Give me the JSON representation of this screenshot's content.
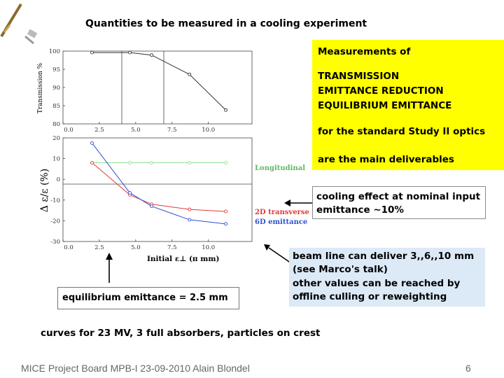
{
  "slide": {
    "title": "Quantities to be measured in a cooling experiment",
    "measurements": {
      "line1": "Measurements of",
      "line2": "TRANSMISSION",
      "line3": "EMITTANCE REDUCTION",
      "line4": "EQUILIBRIUM EMITTANCE",
      "line5": "for the standard Study II optics",
      "line6": "are the main deliverables"
    },
    "cooling_box": {
      "line1": "cooling effect at nominal input",
      "line2": "emittance ~10%"
    },
    "beam_box": {
      "line1": "beam line can deliver 3,,6,,10 mm",
      "line2": "(see Marco's talk)",
      "line3": "other values can be reached by",
      "line4": "offline culling or reweighting"
    },
    "equilibrium_box": "equilibrium emittance = 2.5 mm",
    "curves_note": "curves for 23 MV, 3 full absorbers, particles on crest",
    "footer": "MICE Project Board MPB-I  23-09-2010 Alain Blondel",
    "page_number": "6"
  },
  "chart_data": [
    {
      "type": "line",
      "ylabel": "Transmission  %",
      "x_ticks": [
        "0.0",
        "2.5",
        "5.0",
        "7.5",
        "10.0"
      ],
      "y_ticks": [
        "100",
        "95",
        "90",
        "85",
        "80"
      ],
      "xlim": [
        0,
        13.0
      ],
      "ylim": [
        80,
        100
      ],
      "series": [
        {
          "color": "#333333",
          "x": [
            2.0,
            4.6,
            6.1,
            8.7,
            11.2
          ],
          "y": [
            99.6,
            99.6,
            98.9,
            93.6,
            83.8
          ]
        }
      ]
    },
    {
      "type": "line",
      "ylabel": "Δ ε/ε  (%)",
      "xlabel": "Initial ε⊥ (π mm)",
      "x_ticks": [
        "0.0",
        "2.5",
        "5.0",
        "7.5",
        "10.0"
      ],
      "y_ticks": [
        "20",
        "10",
        "0",
        "-10",
        "-20",
        "-30"
      ],
      "xlim": [
        0,
        13.0
      ],
      "ylim": [
        -30,
        20
      ],
      "series": [
        {
          "name": "Longitudinal",
          "color": "#8fe28f",
          "x": [
            2.0,
            4.6,
            6.1,
            8.7,
            11.2
          ],
          "y": [
            8.0,
            8.0,
            8.0,
            8.0,
            8.0
          ]
        },
        {
          "name": "2D transverse",
          "color": "#e03a3a",
          "x": [
            2.0,
            4.6,
            6.1,
            8.7,
            11.2
          ],
          "y": [
            8.0,
            -7.5,
            -12.0,
            -14.5,
            -15.5
          ]
        },
        {
          "name": "6D emittance",
          "color": "#3050d0",
          "x": [
            2.0,
            4.6,
            6.1,
            8.7,
            11.2
          ],
          "y": [
            17.5,
            -6.5,
            -13.0,
            -19.5,
            -21.5
          ]
        }
      ]
    }
  ]
}
